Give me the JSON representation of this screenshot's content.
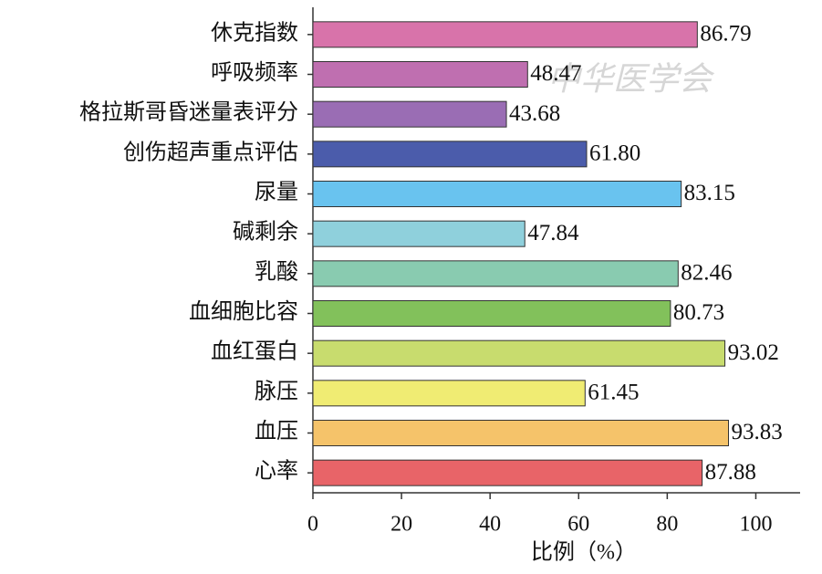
{
  "chart_data": {
    "type": "barh",
    "watermark": "中华医学会",
    "categories": [
      "休克指数",
      "呼吸频率",
      "格拉斯哥昏迷量表评分",
      "创伤超声重点评估",
      "尿量",
      "碱剩余",
      "乳酸",
      "血细胞比容",
      "血红蛋白",
      "脉压",
      "血压",
      "心率"
    ],
    "values": [
      86.79,
      48.47,
      43.68,
      61.8,
      83.15,
      47.84,
      82.46,
      80.73,
      93.02,
      61.45,
      93.83,
      87.88
    ],
    "value_labels": [
      "86.79",
      "48.47",
      "43.68",
      "61.80",
      "83.15",
      "47.84",
      "82.46",
      "80.73",
      "93.02",
      "61.45",
      "93.83",
      "87.88"
    ],
    "colors": [
      "#d873aa",
      "#bf6fb0",
      "#9a6db4",
      "#4b5cab",
      "#69c3ef",
      "#8fd0dc",
      "#89cbb0",
      "#82c15b",
      "#c8dc6e",
      "#f0ec73",
      "#f5c36a",
      "#e86468"
    ],
    "xlabel": "比例（%）",
    "xlim": [
      0,
      110
    ],
    "xticks": [
      0,
      20,
      40,
      60,
      80,
      100
    ]
  }
}
